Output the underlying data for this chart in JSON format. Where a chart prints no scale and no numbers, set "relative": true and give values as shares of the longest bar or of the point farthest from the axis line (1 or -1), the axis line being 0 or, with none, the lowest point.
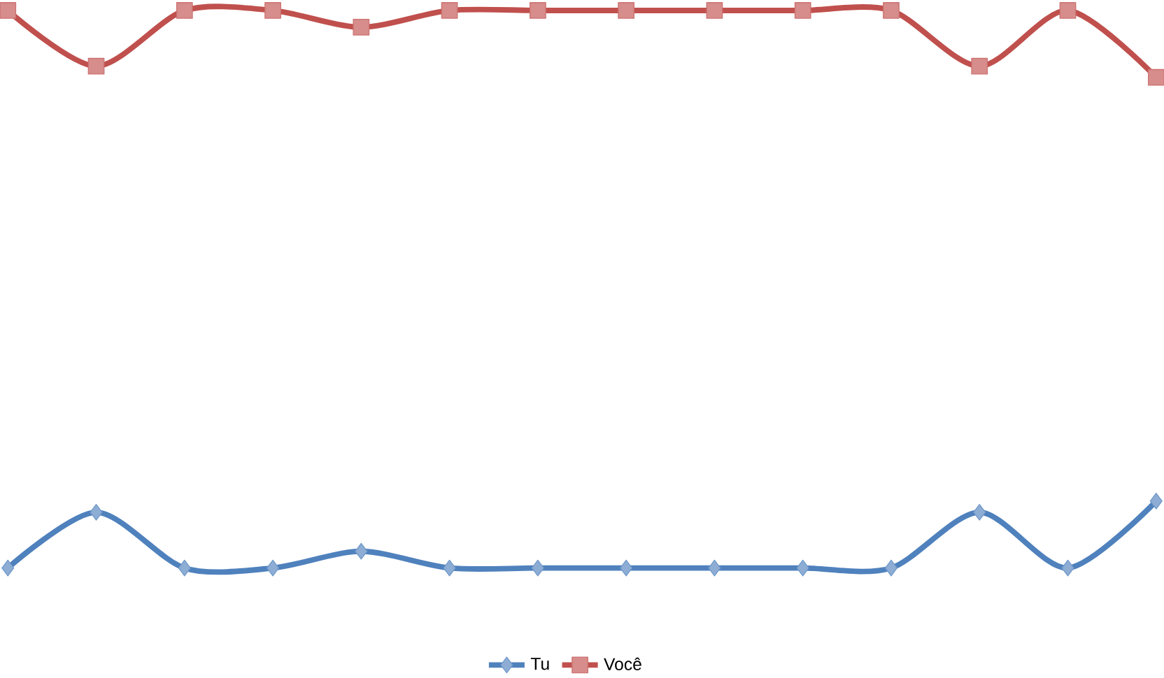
{
  "chart_data": {
    "type": "line",
    "relative": true,
    "legend": "bottom",
    "categories": [
      null,
      null,
      null,
      null,
      null,
      null,
      null,
      null,
      null,
      null,
      null,
      null,
      null,
      null
    ],
    "series": [
      {
        "name": "Tu",
        "color": "#4f81bd",
        "marker": "diamond",
        "values": [
          0,
          0.1,
          0,
          0,
          0.03,
          0,
          0,
          0,
          0,
          0,
          0,
          0.1,
          0,
          0.12
        ]
      },
      {
        "name": "Você",
        "color": "#c0504d",
        "marker": "square",
        "values": [
          1,
          0.9,
          1,
          1,
          0.97,
          1,
          1,
          1,
          1,
          1,
          1,
          0.9,
          1,
          0.88
        ]
      }
    ]
  }
}
